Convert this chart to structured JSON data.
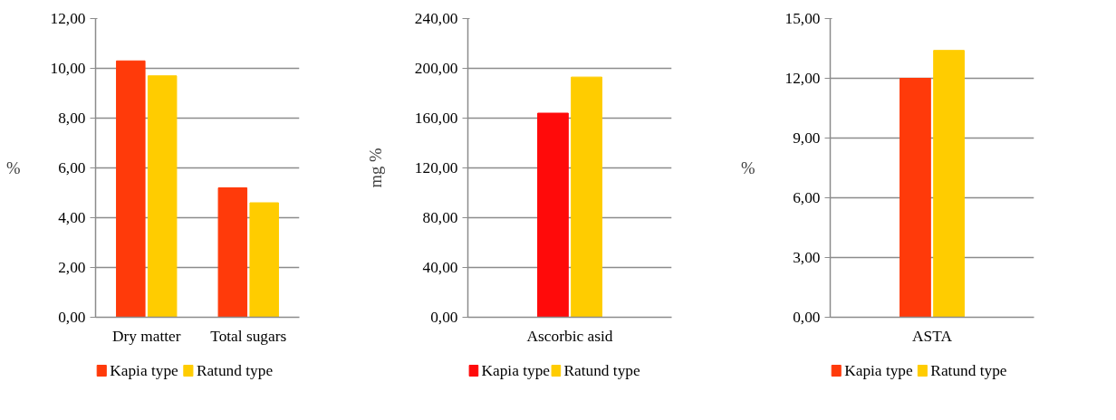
{
  "chart_data": [
    {
      "type": "bar",
      "categories": [
        "Dry matter",
        "Total sugars"
      ],
      "ylabel": "%",
      "ylim": [
        0,
        12
      ],
      "yticks": [
        {
          "value": 0,
          "label": "0,00"
        },
        {
          "value": 2,
          "label": "2,00"
        },
        {
          "value": 4,
          "label": "4,00"
        },
        {
          "value": 6,
          "label": "6,00"
        },
        {
          "value": 8,
          "label": "8,00"
        },
        {
          "value": 10,
          "label": "10,00"
        },
        {
          "value": 12,
          "label": "12,00"
        }
      ],
      "grid": "y",
      "legend": "bottom",
      "series": [
        {
          "name": "Kapia type",
          "color": "#ff3a0a",
          "values": [
            10.3,
            5.2
          ]
        },
        {
          "name": "Ratund type",
          "color": "#ffcc00",
          "values": [
            9.7,
            4.6
          ]
        }
      ]
    },
    {
      "type": "bar",
      "categories": [
        "Ascorbic asid"
      ],
      "ylabel": "mg %",
      "ylim": [
        0,
        240
      ],
      "yticks": [
        {
          "value": 0,
          "label": "0,00"
        },
        {
          "value": 40,
          "label": "40,00"
        },
        {
          "value": 80,
          "label": "80,00"
        },
        {
          "value": 120,
          "label": "120,00"
        },
        {
          "value": 160,
          "label": "160,00"
        },
        {
          "value": 200,
          "label": "200,00"
        },
        {
          "value": 240,
          "label": "240,00"
        }
      ],
      "grid": "y",
      "legend": "bottom",
      "series": [
        {
          "name": "Kapia type",
          "color": "#ff0a0a",
          "values": [
            164
          ]
        },
        {
          "name": "Ratund type",
          "color": "#ffcc00",
          "values": [
            193
          ]
        }
      ]
    },
    {
      "type": "bar",
      "categories": [
        "ASTA"
      ],
      "ylabel": "%",
      "ylim": [
        0,
        15
      ],
      "yticks": [
        {
          "value": 0,
          "label": "0,00"
        },
        {
          "value": 3,
          "label": "3,00"
        },
        {
          "value": 6,
          "label": "6,00"
        },
        {
          "value": 9,
          "label": "9,00"
        },
        {
          "value": 12,
          "label": "12,00"
        },
        {
          "value": 15,
          "label": "15,00"
        }
      ],
      "grid": "y",
      "legend": "bottom",
      "series": [
        {
          "name": "Kapia type",
          "color": "#ff3a0a",
          "values": [
            12.0
          ]
        },
        {
          "name": "Ratund type",
          "color": "#ffcc00",
          "values": [
            13.4
          ]
        }
      ]
    }
  ]
}
